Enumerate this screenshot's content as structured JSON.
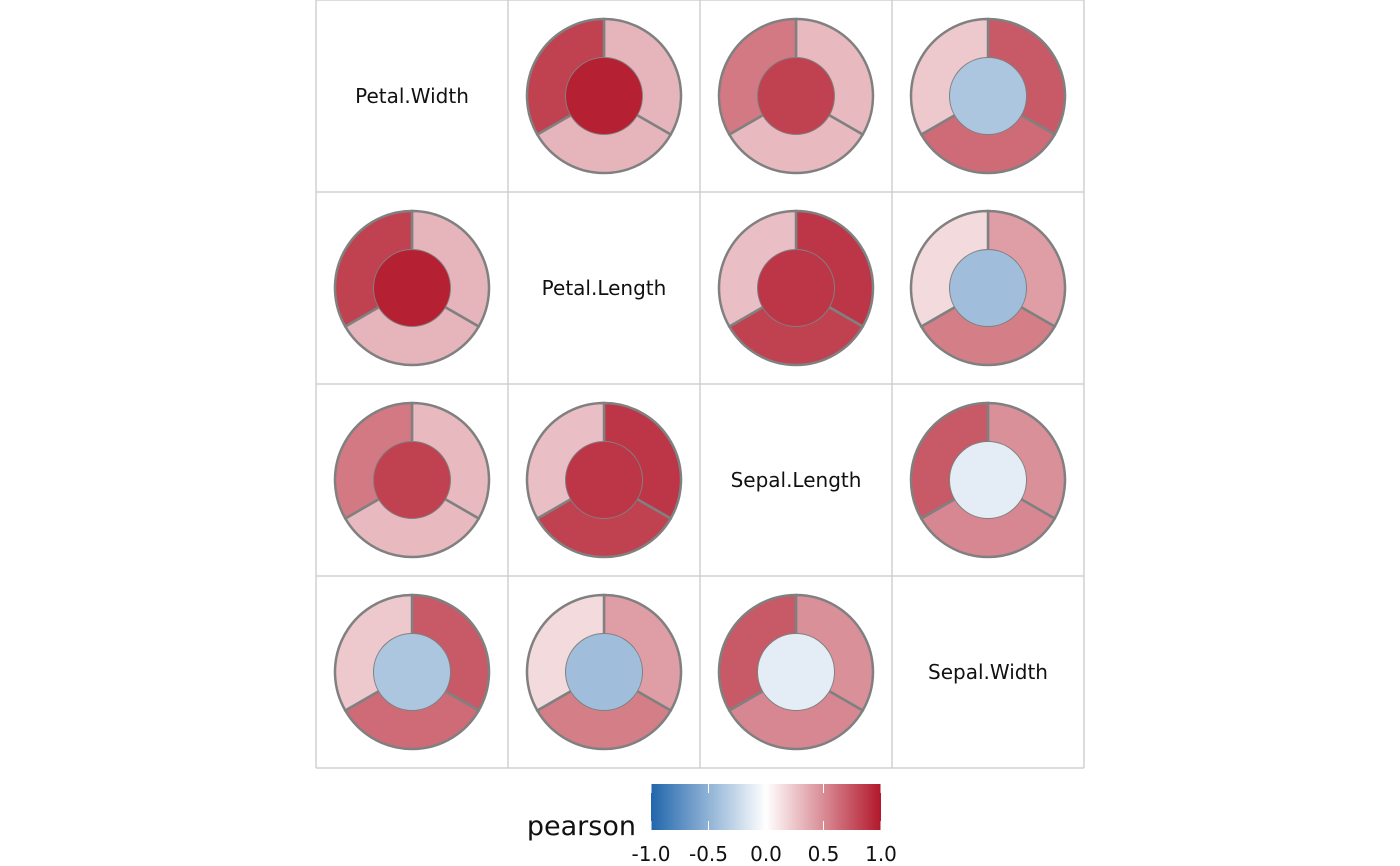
{
  "chart_data": {
    "type": "heatmap",
    "variables": [
      "Petal.Width",
      "Petal.Length",
      "Sepal.Length",
      "Sepal.Width"
    ],
    "cells": [
      {
        "row": "Petal.Width",
        "col": "Petal.Length",
        "center": 0.96,
        "ring": [
          0.32,
          0.32,
          0.82
        ]
      },
      {
        "row": "Petal.Width",
        "col": "Sepal.Length",
        "center": 0.82,
        "ring": [
          0.3,
          0.3,
          0.58
        ]
      },
      {
        "row": "Petal.Width",
        "col": "Sepal.Width",
        "center": -0.37,
        "ring": [
          0.72,
          0.64,
          0.24
        ]
      },
      {
        "row": "Petal.Length",
        "col": "Petal.Width",
        "center": 0.96,
        "ring": [
          0.32,
          0.32,
          0.82
        ]
      },
      {
        "row": "Petal.Length",
        "col": "Sepal.Length",
        "center": 0.87,
        "ring": [
          0.87,
          0.82,
          0.28
        ]
      },
      {
        "row": "Petal.Length",
        "col": "Sepal.Width",
        "center": -0.43,
        "ring": [
          0.42,
          0.56,
          0.16
        ]
      },
      {
        "row": "Sepal.Length",
        "col": "Petal.Width",
        "center": 0.82,
        "ring": [
          0.3,
          0.3,
          0.58
        ]
      },
      {
        "row": "Sepal.Length",
        "col": "Petal.Length",
        "center": 0.87,
        "ring": [
          0.87,
          0.82,
          0.28
        ]
      },
      {
        "row": "Sepal.Length",
        "col": "Sepal.Width",
        "center": -0.12,
        "ring": [
          0.48,
          0.52,
          0.72
        ]
      },
      {
        "row": "Sepal.Width",
        "col": "Petal.Width",
        "center": -0.37,
        "ring": [
          0.72,
          0.64,
          0.24
        ]
      },
      {
        "row": "Sepal.Width",
        "col": "Petal.Length",
        "center": -0.43,
        "ring": [
          0.42,
          0.56,
          0.16
        ]
      },
      {
        "row": "Sepal.Width",
        "col": "Sepal.Length",
        "center": -0.12,
        "ring": [
          0.48,
          0.52,
          0.72
        ]
      }
    ],
    "legend": {
      "title": "pearson",
      "range": [
        -1,
        1
      ],
      "ticks": [
        -1.0,
        -0.5,
        0.0,
        0.5,
        1.0
      ],
      "tick_labels": [
        "-1.0",
        "-0.5",
        "0.0",
        "0.5",
        "1.0"
      ],
      "placement": "bottom"
    },
    "colors": {
      "low": "#2166ac",
      "mid": "#ffffff",
      "high": "#b2182b",
      "outline": "#808080",
      "grid": "#d0d0d0"
    }
  }
}
